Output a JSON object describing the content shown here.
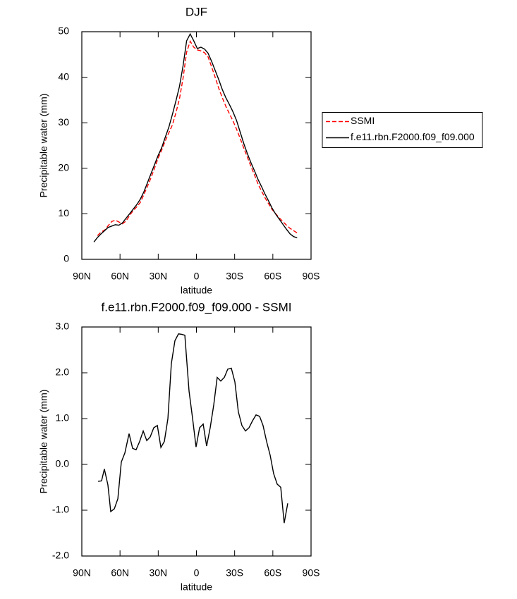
{
  "chart_data": [
    {
      "type": "line",
      "title": "DJF",
      "xlabel": "latitude",
      "ylabel": "Precipitable water (mm)",
      "x": [
        80.5,
        77.7,
        74.9,
        72.1,
        69.3,
        66.5,
        63.7,
        60.9,
        58.1,
        55.3,
        52.5,
        49.7,
        46.9,
        44.1,
        41.3,
        38.5,
        35.7,
        32.9,
        30.1,
        27.3,
        24.5,
        21.7,
        18.9,
        16.1,
        13.3,
        10.5,
        7.7,
        4.9,
        2.1,
        -0.7,
        -3.5,
        -6.3,
        -9.1,
        -11.9,
        -14.7,
        -17.5,
        -20.3,
        -23.1,
        -25.9,
        -28.7,
        -31.5,
        -34.3,
        -37.1,
        -39.9,
        -42.7,
        -45.5,
        -48.3,
        -51.1,
        -53.9,
        -56.7,
        -59.5,
        -62.3,
        -65.1,
        -67.9,
        -70.7,
        -73.5,
        -76.3,
        -79.1
      ],
      "series": [
        {
          "name": "SSMI",
          "color": "#ff0000",
          "line_style": "dashed",
          "values": [
            null,
            5.2,
            6.0,
            6.4,
            7.4,
            8.3,
            8.6,
            8.2,
            7.8,
            8.4,
            9.6,
            10.7,
            11.5,
            12.5,
            14.2,
            16.0,
            17.9,
            20.0,
            22.2,
            24.0,
            26.0,
            27.8,
            29.5,
            32.2,
            35.3,
            39.8,
            45.5,
            47.9,
            46.6,
            46.0,
            45.8,
            45.4,
            44.5,
            42.3,
            40.0,
            37.6,
            35.5,
            33.6,
            32.0,
            30.4,
            28.6,
            26.6,
            24.5,
            22.5,
            20.5,
            18.6,
            16.6,
            15.0,
            13.5,
            12.2,
            10.9,
            10.0,
            9.1,
            8.3,
            7.5,
            6.8,
            6.3,
            5.8
          ]
        },
        {
          "name": "f.e11.rbn.F2000.f09_f09.000",
          "color": "#000000",
          "line_style": "solid",
          "values": [
            3.8,
            4.8,
            5.6,
            6.3,
            7.0,
            7.3,
            7.6,
            7.5,
            8.0,
            9.0,
            10.0,
            11.0,
            12.0,
            13.2,
            14.8,
            16.8,
            18.8,
            20.8,
            22.8,
            24.5,
            26.8,
            29.0,
            31.8,
            34.8,
            38.0,
            42.5,
            48.0,
            49.5,
            48.0,
            46.3,
            46.6,
            46.2,
            45.3,
            43.5,
            41.5,
            39.5,
            37.3,
            35.5,
            34.0,
            32.4,
            30.5,
            28.0,
            25.5,
            23.3,
            21.3,
            19.5,
            17.6,
            16.0,
            14.3,
            12.8,
            11.2,
            9.9,
            8.8,
            7.7,
            6.6,
            5.6,
            5.0,
            4.7
          ]
        }
      ],
      "xlim": [
        90,
        -90
      ],
      "xticks": [
        {
          "value": 90,
          "label": "90N"
        },
        {
          "value": 60,
          "label": "60N"
        },
        {
          "value": 30,
          "label": "30N"
        },
        0,
        {
          "value": -30,
          "label": "30S"
        },
        {
          "value": -60,
          "label": "60S"
        },
        {
          "value": -90,
          "label": "90S"
        }
      ],
      "ylim": [
        0,
        50
      ],
      "yticks": [
        0,
        10,
        20,
        30,
        40,
        50
      ],
      "legend": "right"
    },
    {
      "type": "line",
      "title": "f.e11.rbn.F2000.f09_f09.000 - SSMI",
      "xlabel": "latitude",
      "ylabel": "Precipitable water (mm)",
      "x": [
        77.2,
        74.5,
        72.3,
        69.5,
        67.3,
        64.5,
        61.7,
        59.0,
        56.2,
        52.9,
        50.1,
        47.4,
        44.6,
        41.8,
        39.0,
        36.3,
        33.5,
        30.7,
        27.9,
        25.2,
        22.4,
        19.7,
        16.9,
        14.1,
        11.6,
        9.1,
        5.8,
        3.0,
        0.3,
        -2.5,
        -5.3,
        -8.0,
        -10.8,
        -13.6,
        -16.3,
        -19.1,
        -21.9,
        -24.6,
        -27.4,
        -30.2,
        -32.9,
        -35.7,
        -38.5,
        -41.3,
        -44.0,
        -46.8,
        -49.6,
        -52.3,
        -55.1,
        -57.9,
        -60.6,
        -63.4,
        -66.2,
        -68.9,
        -71.7
      ],
      "values": [
        -0.37,
        -0.36,
        -0.1,
        -0.45,
        -1.03,
        -0.97,
        -0.75,
        0.05,
        0.25,
        0.67,
        0.35,
        0.32,
        0.5,
        0.73,
        0.52,
        0.6,
        0.8,
        0.85,
        0.37,
        0.5,
        1.0,
        2.2,
        2.7,
        2.85,
        2.84,
        2.82,
        1.6,
        1.0,
        0.38,
        0.8,
        0.88,
        0.4,
        0.8,
        1.3,
        1.9,
        1.82,
        1.9,
        2.08,
        2.1,
        1.8,
        1.15,
        0.85,
        0.73,
        0.8,
        0.95,
        1.08,
        1.05,
        0.85,
        0.5,
        0.2,
        -0.2,
        -0.43,
        -0.5,
        -1.28,
        -0.85
      ],
      "color": "#000000",
      "xlim": [
        90,
        -90
      ],
      "xticks": [
        {
          "value": 90,
          "label": "90N"
        },
        {
          "value": 60,
          "label": "60N"
        },
        {
          "value": 30,
          "label": "30N"
        },
        0,
        {
          "value": -30,
          "label": "30S"
        },
        {
          "value": -60,
          "label": "60S"
        },
        {
          "value": -90,
          "label": "90S"
        }
      ],
      "ylim": [
        -2,
        3
      ],
      "yticks": [
        {
          "value": -2,
          "label": "-2.0"
        },
        {
          "value": -1,
          "label": "-1.0"
        },
        {
          "value": 0,
          "label": "0.0"
        },
        {
          "value": 1,
          "label": "1.0"
        },
        {
          "value": 2,
          "label": "2.0"
        },
        {
          "value": 3,
          "label": "3.0"
        }
      ]
    }
  ]
}
